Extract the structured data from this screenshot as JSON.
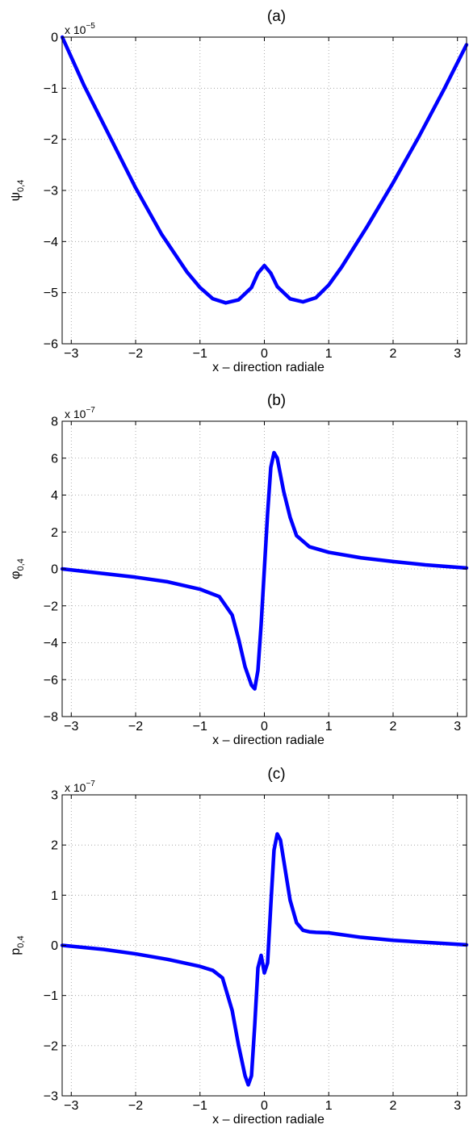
{
  "chart_data": [
    {
      "type": "line",
      "title": "(a)",
      "xlabel": "x – direction radiale",
      "ylabel": {
        "base": "ψ",
        "subscript": "0,4"
      },
      "multiplier": {
        "base": "x 10",
        "exponent": "−5"
      },
      "xlim": [
        -3.14159,
        3.14159
      ],
      "ylim": [
        -6,
        0
      ],
      "xticks": [
        -3,
        -2,
        -1,
        0,
        1,
        2,
        3
      ],
      "xtick_labels": [
        "−3",
        "−2",
        "−1",
        "0",
        "1",
        "2",
        "3"
      ],
      "yticks": [
        -6,
        -5,
        -4,
        -3,
        -2,
        -1,
        0
      ],
      "ytick_labels": [
        "−6",
        "−5",
        "−4",
        "−3",
        "−2",
        "−1",
        "0"
      ],
      "grid": true,
      "line_color": "#0000ff",
      "series": [
        {
          "x": [
            -3.14,
            -2.8,
            -2.4,
            -2.0,
            -1.6,
            -1.2,
            -1.0,
            -0.8,
            -0.6,
            -0.4,
            -0.2,
            -0.1,
            0.0,
            0.1,
            0.2,
            0.4,
            0.6,
            0.8,
            1.0,
            1.2,
            1.6,
            2.0,
            2.4,
            2.8,
            3.14
          ],
          "y": [
            0.0,
            -0.95,
            -1.95,
            -2.95,
            -3.85,
            -4.6,
            -4.9,
            -5.12,
            -5.2,
            -5.14,
            -4.9,
            -4.62,
            -4.47,
            -4.62,
            -4.88,
            -5.12,
            -5.18,
            -5.1,
            -4.85,
            -4.5,
            -3.7,
            -2.85,
            -1.95,
            -1.0,
            -0.15
          ]
        }
      ]
    },
    {
      "type": "line",
      "title": "(b)",
      "xlabel": "x – direction radiale",
      "ylabel": {
        "base": "φ",
        "subscript": "0,4"
      },
      "multiplier": {
        "base": "x 10",
        "exponent": "−7"
      },
      "xlim": [
        -3.14159,
        3.14159
      ],
      "ylim": [
        -8,
        8
      ],
      "xticks": [
        -3,
        -2,
        -1,
        0,
        1,
        2,
        3
      ],
      "xtick_labels": [
        "−3",
        "−2",
        "−1",
        "0",
        "1",
        "2",
        "3"
      ],
      "yticks": [
        -8,
        -6,
        -4,
        -2,
        0,
        2,
        4,
        6,
        8
      ],
      "ytick_labels": [
        "−8",
        "−6",
        "−4",
        "−2",
        "0",
        "2",
        "4",
        "6",
        "8"
      ],
      "grid": true,
      "line_color": "#0000ff",
      "series": [
        {
          "x": [
            -3.14,
            -2.5,
            -2.0,
            -1.5,
            -1.0,
            -0.7,
            -0.5,
            -0.4,
            -0.3,
            -0.2,
            -0.15,
            -0.1,
            -0.05,
            0.0,
            0.05,
            0.1,
            0.15,
            0.2,
            0.3,
            0.4,
            0.5,
            0.7,
            1.0,
            1.5,
            2.0,
            2.5,
            3.14
          ],
          "y": [
            0.0,
            -0.25,
            -0.45,
            -0.7,
            -1.1,
            -1.5,
            -2.5,
            -3.8,
            -5.3,
            -6.3,
            -6.5,
            -5.5,
            -3.0,
            0.0,
            3.0,
            5.5,
            6.3,
            6.0,
            4.2,
            2.8,
            1.8,
            1.2,
            0.9,
            0.6,
            0.4,
            0.22,
            0.05
          ]
        }
      ]
    },
    {
      "type": "line",
      "title": "(c)",
      "xlabel": "x – direction radiale",
      "ylabel": {
        "base": "p",
        "subscript": "0,4"
      },
      "multiplier": {
        "base": "x 10",
        "exponent": "−7"
      },
      "xlim": [
        -3.14159,
        3.14159
      ],
      "ylim": [
        -3,
        3
      ],
      "xticks": [
        -3,
        -2,
        -1,
        0,
        1,
        2,
        3
      ],
      "xtick_labels": [
        "−3",
        "−2",
        "−1",
        "0",
        "1",
        "2",
        "3"
      ],
      "yticks": [
        -3,
        -2,
        -1,
        0,
        1,
        2,
        3
      ],
      "ytick_labels": [
        "−3",
        "−2",
        "−1",
        "0",
        "1",
        "2",
        "3"
      ],
      "grid": true,
      "line_color": "#0000ff",
      "series": [
        {
          "x": [
            -3.14,
            -2.5,
            -2.0,
            -1.5,
            -1.0,
            -0.8,
            -0.65,
            -0.5,
            -0.4,
            -0.3,
            -0.25,
            -0.2,
            -0.15,
            -0.1,
            -0.05,
            0.0,
            0.05,
            0.1,
            0.15,
            0.2,
            0.25,
            0.3,
            0.4,
            0.5,
            0.6,
            0.7,
            0.8,
            1.0,
            1.5,
            2.0,
            2.5,
            3.14
          ],
          "y": [
            0.0,
            -0.08,
            -0.17,
            -0.28,
            -0.42,
            -0.5,
            -0.65,
            -1.3,
            -2.0,
            -2.6,
            -2.78,
            -2.6,
            -1.6,
            -0.45,
            -0.2,
            -0.55,
            -0.35,
            0.8,
            1.9,
            2.22,
            2.1,
            1.7,
            0.9,
            0.45,
            0.3,
            0.27,
            0.26,
            0.25,
            0.16,
            0.1,
            0.06,
            0.01
          ]
        }
      ]
    }
  ]
}
